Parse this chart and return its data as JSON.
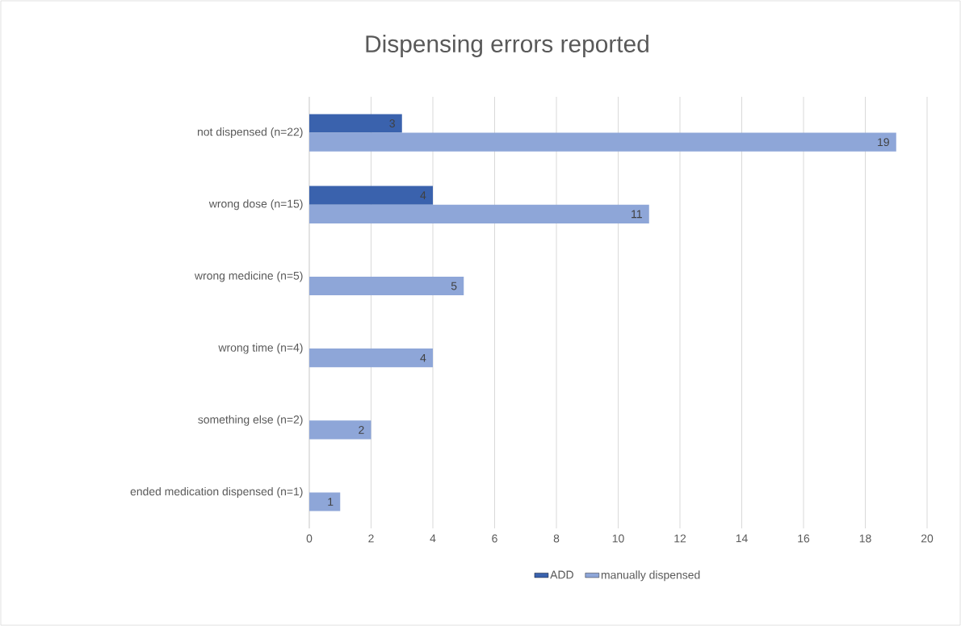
{
  "chart_data": {
    "type": "bar",
    "orientation": "horizontal",
    "title": "Dispensing errors reported",
    "categories": [
      "not dispensed (n=22)",
      "wrong dose (n=15)",
      "wrong medicine (n=5)",
      "wrong time (n=4)",
      "something else (n=2)",
      "ended medication dispensed (n=1)"
    ],
    "series": [
      {
        "name": "ADD",
        "color": "#3a62ad",
        "values": [
          3,
          4,
          null,
          null,
          null,
          null
        ]
      },
      {
        "name": "manually dispensed",
        "color": "#8ea6d8",
        "values": [
          19,
          11,
          5,
          4,
          2,
          1
        ]
      }
    ],
    "xlim": [
      0,
      20
    ],
    "xticks": [
      0,
      2,
      4,
      6,
      8,
      10,
      12,
      14,
      16,
      18,
      20
    ],
    "grid": "x",
    "legend": "bottom",
    "data_labels": true
  }
}
